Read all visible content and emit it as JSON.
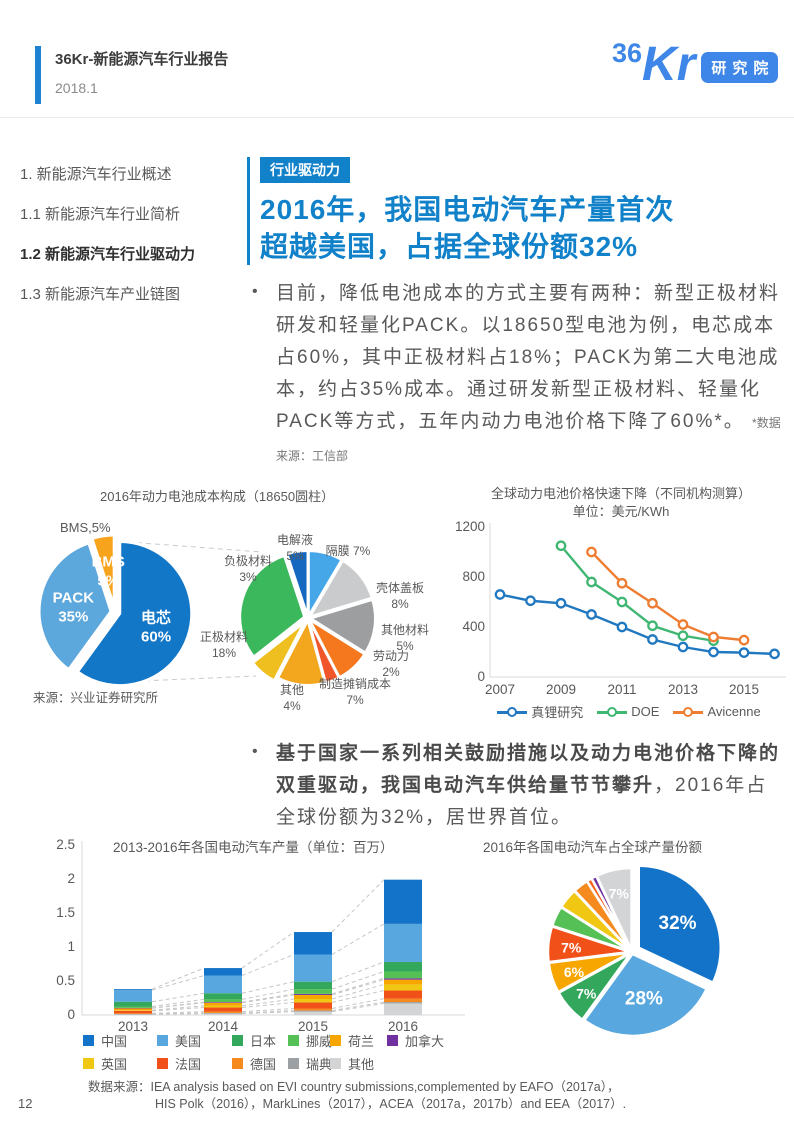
{
  "header": {
    "report_title": "36Kr-新能源汽车行业报告",
    "date": "2018.1",
    "logo_36": "36",
    "logo_kr": "Kr",
    "logo_badge": "研究院"
  },
  "sidebar": {
    "items": [
      {
        "label": "1. 新能源汽车行业概述",
        "active": false
      },
      {
        "label": "1.1 新能源汽车行业简析",
        "active": false
      },
      {
        "label": "1.2 新能源汽车行业驱动力",
        "active": true
      },
      {
        "label": "1.3 新能源汽车产业链图",
        "active": false
      }
    ]
  },
  "content": {
    "section_badge": "行业驱动力",
    "title_line1": "2016年，我国电动汽车产量首次",
    "title_line2": "超越美国，占据全球份额32%",
    "bullet1": "目前，降低电池成本的方式主要有两种：新型正极材料研发和轻量化PACK。以18650型电池为例，电芯成本占60%，其中正极材料占18%；PACK为第二大电池成本，约占35%成本。通过研发新型正极材料、轻量化PACK等方式，五年内动力电池价格下降了60%*。",
    "bullet1_note": "*数据来源：工信部",
    "bullet2_bold": "基于国家一系列相关鼓励措施以及动力电池价格下降的双重驱动，我国电动汽车供给量节节攀升",
    "bullet2_rest": "，2016年占全球份额为32%，居世界首位。",
    "datasource_line1": "数据来源：IEA analysis based on EVI country submissions,complemented  by EAFO（2017a），",
    "datasource_line2": "HIS Polk（2016），MarkLines（2017），ACEA（2017a，2017b）and  EEA（2017）.",
    "page_number": "12"
  },
  "chart_data": [
    {
      "id": "battery-cost-pie",
      "type": "pie",
      "title": "2016年动力电池成本构成（18650圆柱）",
      "source": "来源：兴业证券研究所",
      "slices": [
        {
          "label": "电芯",
          "pct": "60%",
          "value": 60,
          "color": "#1377C8"
        },
        {
          "label": "PACK",
          "pct": "35%",
          "value": 35,
          "color": "#5CA7DC"
        },
        {
          "label": "BMS",
          "pct": "5%",
          "value": 5,
          "color": "#F7A31B"
        }
      ],
      "outside_label": "BMS,5%"
    },
    {
      "id": "cell-cost-pie",
      "type": "pie",
      "slices": [
        {
          "label": "电解液",
          "pct": "5%",
          "value": 5,
          "color": "#45A6E8"
        },
        {
          "label": "隔膜",
          "pct": "7%",
          "value": 7,
          "color": "#C9CBCD"
        },
        {
          "label": "壳体盖板",
          "pct": "8%",
          "value": 8,
          "color": "#9C9EA0"
        },
        {
          "label": "其他材料",
          "pct": "5%",
          "value": 5,
          "color": "#F5781E"
        },
        {
          "label": "劳动力",
          "pct": "2%",
          "value": 2,
          "color": "#F1552A"
        },
        {
          "label": "制造摊销成本",
          "pct": "7%",
          "value": 7,
          "color": "#F2A71E"
        },
        {
          "label": "其他",
          "pct": "4%",
          "value": 4,
          "color": "#EFBE1F"
        },
        {
          "label": "正极材料",
          "pct": "18%",
          "value": 18,
          "color": "#3CB85C"
        },
        {
          "label": "负极材料",
          "pct": "3%",
          "value": 3,
          "color": "#1468C0"
        }
      ]
    },
    {
      "id": "battery-price-line",
      "type": "line",
      "title": "全球动力电池价格快速下降（不同机构测算）",
      "subtitle": "单位：美元/KWh",
      "x": [
        2007,
        2008,
        2009,
        2010,
        2011,
        2012,
        2013,
        2014,
        2015,
        2016
      ],
      "xticks": [
        2007,
        2009,
        2011,
        2013,
        2015
      ],
      "ylim": [
        0,
        1200
      ],
      "yticks": [
        0,
        400,
        800,
        1200
      ],
      "series": [
        {
          "name": "真锂研究",
          "color": "#2078C0",
          "values": [
            660,
            610,
            590,
            500,
            400,
            300,
            240,
            200,
            195,
            185
          ]
        },
        {
          "name": "DOE",
          "color": "#3FB773",
          "values": [
            null,
            null,
            1050,
            760,
            600,
            410,
            330,
            290,
            null,
            null
          ]
        },
        {
          "name": "Avicenne",
          "color": "#EE7D31",
          "values": [
            null,
            null,
            null,
            1000,
            750,
            590,
            420,
            320,
            295,
            null
          ]
        }
      ]
    },
    {
      "id": "ev-production-bar",
      "type": "bar",
      "title": "2013-2016年各国电动汽车产量（单位：百万）",
      "categories": [
        2013,
        2014,
        2015,
        2016
      ],
      "ylim": [
        0,
        2.5
      ],
      "yticks": [
        0,
        0.5,
        1,
        1.5,
        2,
        2.5
      ],
      "stack_order_note": "bottom to top",
      "series": [
        {
          "name": "其他",
          "color": "#D2D4D6",
          "values": [
            0.01,
            0.02,
            0.05,
            0.17
          ]
        },
        {
          "name": "瑞典",
          "color": "#9CA0A3",
          "values": [
            0.005,
            0.01,
            0.015,
            0.02
          ]
        },
        {
          "name": "德国",
          "color": "#F58B1F",
          "values": [
            0.01,
            0.02,
            0.03,
            0.05
          ]
        },
        {
          "name": "法国",
          "color": "#F25019",
          "values": [
            0.035,
            0.06,
            0.09,
            0.12
          ]
        },
        {
          "name": "英国",
          "color": "#F0C814",
          "values": [
            0.01,
            0.025,
            0.05,
            0.09
          ]
        },
        {
          "name": "荷兰",
          "color": "#F7A600",
          "values": [
            0.03,
            0.045,
            0.06,
            0.07
          ]
        },
        {
          "name": "加拿大",
          "color": "#7030A0",
          "values": [
            0.005,
            0.01,
            0.015,
            0.02
          ]
        },
        {
          "name": "挪威",
          "color": "#55C055",
          "values": [
            0.02,
            0.04,
            0.07,
            0.1
          ]
        },
        {
          "name": "日本",
          "color": "#33A85C",
          "values": [
            0.07,
            0.09,
            0.11,
            0.14
          ]
        },
        {
          "name": "美国",
          "color": "#58A7DE",
          "values": [
            0.17,
            0.26,
            0.4,
            0.56
          ]
        },
        {
          "name": "中国",
          "color": "#1273C8",
          "values": [
            0.015,
            0.11,
            0.33,
            0.65
          ]
        }
      ],
      "legend": [
        {
          "label": "中国",
          "color": "#1273C8"
        },
        {
          "label": "美国",
          "color": "#58A7DE"
        },
        {
          "label": "日本",
          "color": "#33A85C"
        },
        {
          "label": "挪威",
          "color": "#55C055"
        },
        {
          "label": "荷兰",
          "color": "#F7A600"
        },
        {
          "label": "加拿大",
          "color": "#7030A0"
        },
        {
          "label": "英国",
          "color": "#F0C814"
        },
        {
          "label": "法国",
          "color": "#F25019"
        },
        {
          "label": "德国",
          "color": "#F58B1F"
        },
        {
          "label": "瑞典",
          "color": "#9CA0A3"
        },
        {
          "label": "其他",
          "color": "#D2D4D6"
        }
      ]
    },
    {
      "id": "ev-share-pie",
      "type": "pie",
      "title": "2016年各国电动汽车占全球产量份额",
      "slices": [
        {
          "label": "中国",
          "pct": "32%",
          "value": 32,
          "color": "#1273C8"
        },
        {
          "label": "美国",
          "pct": "28%",
          "value": 28,
          "color": "#58A7DE"
        },
        {
          "label": "日本",
          "pct": "7%",
          "value": 7,
          "color": "#33A85C"
        },
        {
          "label": "荷兰",
          "pct": "6%",
          "value": 6,
          "color": "#F7A600"
        },
        {
          "label": "法国",
          "pct": "7%",
          "value": 7,
          "color": "#F25019"
        },
        {
          "label": "挪威",
          "pct": "",
          "value": 4,
          "color": "#55C055"
        },
        {
          "label": "英国",
          "pct": "",
          "value": 4,
          "color": "#F0C814"
        },
        {
          "label": "德国",
          "pct": "",
          "value": 3,
          "color": "#F58B1F"
        },
        {
          "label": "瑞典",
          "pct": "",
          "value": 1,
          "color": "#F4611C"
        },
        {
          "label": "加拿大",
          "pct": "",
          "value": 1,
          "color": "#7030A0"
        },
        {
          "label": "其他",
          "pct": "7%",
          "value": 7,
          "color": "#D2D4D6"
        }
      ]
    }
  ]
}
